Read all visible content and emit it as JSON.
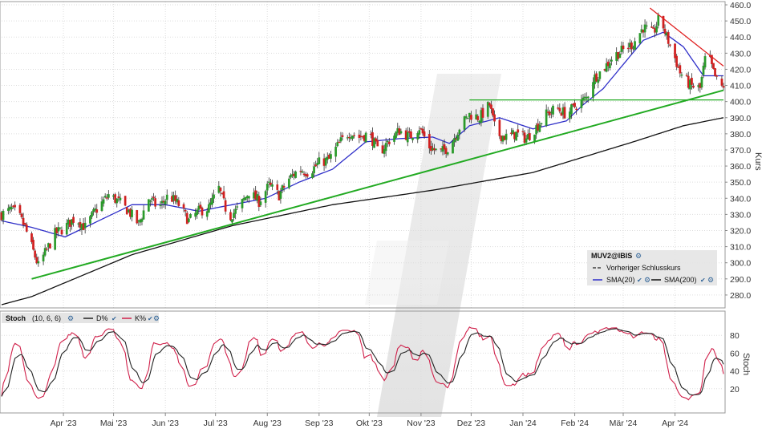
{
  "chart_data": [
    {
      "type": "candlestick",
      "symbol": "MUV2@IBIS",
      "ylabel": "Kurs",
      "ylim": [
        272,
        462
      ],
      "yticks": [
        280,
        290,
        300,
        310,
        320,
        330,
        340,
        350,
        360,
        370,
        380,
        390,
        400,
        410,
        420,
        430,
        440,
        450,
        460
      ],
      "x_range_days": [
        -18,
        414
      ],
      "month_labels": [
        {
          "label": "Apr '23",
          "day": 19
        },
        {
          "label": "Mai '23",
          "day": 49
        },
        {
          "label": "Jun '23",
          "day": 80
        },
        {
          "label": "Jul '23",
          "day": 110
        },
        {
          "label": "Aug '23",
          "day": 141
        },
        {
          "label": "Sep '23",
          "day": 172
        },
        {
          "label": "Okt '23",
          "day": 202
        },
        {
          "label": "Nov '23",
          "day": 233
        },
        {
          "label": "Dez '23",
          "day": 263
        },
        {
          "label": "Jan '24",
          "day": 294
        },
        {
          "label": "Feb '24",
          "day": 325
        },
        {
          "label": "Mär '24",
          "day": 354
        },
        {
          "label": "Apr '24",
          "day": 385
        }
      ],
      "close_anchors": [
        [
          -18,
          330
        ],
        [
          -12,
          333
        ],
        [
          -8,
          330
        ],
        [
          -4,
          322
        ],
        [
          0,
          310
        ],
        [
          4,
          298
        ],
        [
          8,
          306
        ],
        [
          14,
          318
        ],
        [
          20,
          322
        ],
        [
          26,
          328
        ],
        [
          32,
          322
        ],
        [
          38,
          332
        ],
        [
          46,
          342
        ],
        [
          52,
          338
        ],
        [
          58,
          332
        ],
        [
          64,
          324
        ],
        [
          70,
          340
        ],
        [
          76,
          334
        ],
        [
          82,
          342
        ],
        [
          88,
          336
        ],
        [
          94,
          326
        ],
        [
          100,
          332
        ],
        [
          106,
          334
        ],
        [
          112,
          346
        ],
        [
          118,
          328
        ],
        [
          124,
          334
        ],
        [
          130,
          344
        ],
        [
          136,
          338
        ],
        [
          142,
          348
        ],
        [
          148,
          342
        ],
        [
          154,
          352
        ],
        [
          160,
          358
        ],
        [
          166,
          356
        ],
        [
          172,
          362
        ],
        [
          178,
          364
        ],
        [
          184,
          374
        ],
        [
          190,
          381
        ],
        [
          196,
          378
        ],
        [
          202,
          380
        ],
        [
          208,
          368
        ],
        [
          214,
          376
        ],
        [
          220,
          382
        ],
        [
          226,
          378
        ],
        [
          232,
          384
        ],
        [
          238,
          372
        ],
        [
          244,
          368
        ],
        [
          250,
          372
        ],
        [
          256,
          384
        ],
        [
          262,
          392
        ],
        [
          268,
          390
        ],
        [
          274,
          398
        ],
        [
          278,
          380
        ],
        [
          284,
          378
        ],
        [
          290,
          380
        ],
        [
          296,
          377
        ],
        [
          302,
          384
        ],
        [
          308,
          392
        ],
        [
          314,
          396
        ],
        [
          320,
          392
        ],
        [
          326,
          398
        ],
        [
          332,
          402
        ],
        [
          336,
          414
        ],
        [
          342,
          420
        ],
        [
          348,
          428
        ],
        [
          354,
          432
        ],
        [
          360,
          436
        ],
        [
          366,
          446
        ],
        [
          372,
          442
        ],
        [
          376,
          453
        ],
        [
          380,
          440
        ],
        [
          384,
          430
        ],
        [
          388,
          418
        ],
        [
          394,
          410
        ],
        [
          400,
          408
        ],
        [
          404,
          432
        ],
        [
          408,
          418
        ],
        [
          412,
          408
        ],
        [
          414,
          410
        ]
      ],
      "series": [
        {
          "name": "Vorheriger Schlusskurs",
          "color": "#222222",
          "style": "dashed"
        },
        {
          "name": "SMA(20)",
          "color": "#2e2ec8",
          "values": [
            [
              -18,
              326
            ],
            [
              0,
              322
            ],
            [
              20,
              316
            ],
            [
              40,
              326
            ],
            [
              60,
              336
            ],
            [
              80,
              336
            ],
            [
              100,
              332
            ],
            [
              120,
              336
            ],
            [
              140,
              340
            ],
            [
              160,
              350
            ],
            [
              180,
              358
            ],
            [
              200,
              375
            ],
            [
              220,
              377
            ],
            [
              240,
              378
            ],
            [
              250,
              374
            ],
            [
              262,
              385
            ],
            [
              280,
              390
            ],
            [
              300,
              383
            ],
            [
              320,
              388
            ],
            [
              330,
              398
            ],
            [
              342,
              408
            ],
            [
              354,
              423
            ],
            [
              366,
              438
            ],
            [
              378,
              443
            ],
            [
              390,
              434
            ],
            [
              402,
              416
            ],
            [
              414,
              416
            ]
          ]
        },
        {
          "name": "SMA(200)",
          "color": "#111111",
          "values": [
            [
              -18,
              274
            ],
            [
              0,
              279
            ],
            [
              60,
              305
            ],
            [
              120,
              323
            ],
            [
              180,
              336
            ],
            [
              240,
              345
            ],
            [
              300,
              356
            ],
            [
              360,
              375
            ],
            [
              390,
              385
            ],
            [
              414,
              390
            ]
          ]
        }
      ],
      "trendlines": [
        {
          "name": "support",
          "color": "#22aa22",
          "from": [
            0,
            290
          ],
          "to": [
            414,
            407
          ]
        },
        {
          "name": "horizontal",
          "color": "#22aa22",
          "from": [
            262,
            401
          ],
          "to": [
            414,
            401
          ]
        },
        {
          "name": "resistance",
          "color": "#e02020",
          "from": [
            370,
            458
          ],
          "to": [
            414,
            422
          ]
        }
      ],
      "legend": {
        "title": "MUV2@IBIS",
        "items": [
          "Vorheriger Schlusskurs",
          "SMA(20)",
          "SMA(200)"
        ],
        "placement": "bottom-right"
      }
    },
    {
      "type": "line",
      "indicator": "Stoch",
      "params": "(10, 6, 6)",
      "ylabel": "Stoch",
      "ylim": [
        0,
        100
      ],
      "yticks": [
        20,
        40,
        60,
        80
      ],
      "series": [
        {
          "name": "D%",
          "color": "#222222"
        },
        {
          "name": "K%",
          "color": "#d0204a"
        }
      ],
      "legend": {
        "placement": "top-left"
      }
    }
  ],
  "legend_icons": {
    "check": "✔",
    "cog": "⚙"
  }
}
